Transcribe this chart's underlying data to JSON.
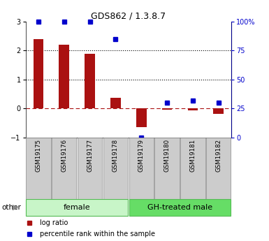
{
  "title": "GDS862 / 1.3.8.7",
  "samples": [
    "GSM19175",
    "GSM19176",
    "GSM19177",
    "GSM19178",
    "GSM19179",
    "GSM19180",
    "GSM19181",
    "GSM19182"
  ],
  "log_ratio": [
    2.4,
    2.2,
    1.9,
    0.38,
    -0.65,
    -0.05,
    -0.07,
    -0.18
  ],
  "percentile_rank": [
    100,
    100,
    100,
    85,
    0,
    30,
    32,
    30
  ],
  "groups": [
    {
      "label": "female",
      "start": 0,
      "end": 4,
      "color": "#c8f5c8",
      "edge": "#55bb55"
    },
    {
      "label": "GH-treated male",
      "start": 4,
      "end": 8,
      "color": "#66dd66",
      "edge": "#55bb55"
    }
  ],
  "ylim": [
    -1,
    3
  ],
  "yticks_left": [
    -1,
    0,
    1,
    2,
    3
  ],
  "yticks_right": [
    0,
    25,
    50,
    75,
    100
  ],
  "bar_color": "#aa1111",
  "dot_color": "#0000cc",
  "zero_line_color": "#aa1111",
  "legend_items": [
    "log ratio",
    "percentile rank within the sample"
  ],
  "other_label": "other"
}
